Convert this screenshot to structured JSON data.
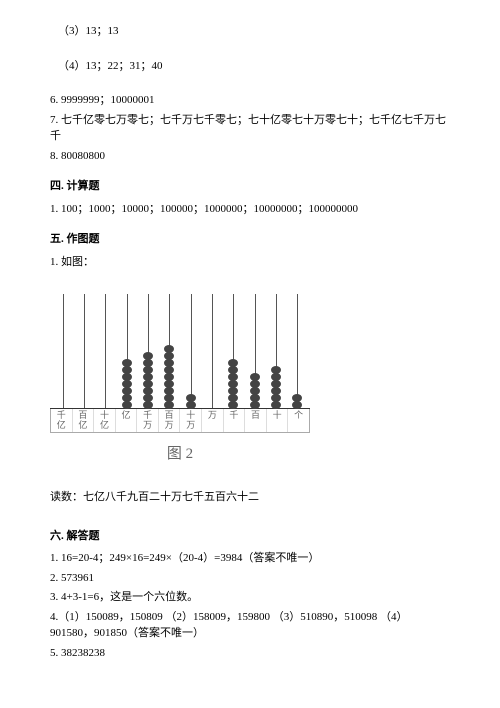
{
  "answers": {
    "item3": "（3）13；13",
    "item4": "（4）13；22；31；40",
    "item6": "6. 9999999；10000001",
    "item7": "7. 七千亿零七万零七；七千万七千零七；七十亿零七十万零七十；七千亿七千万七千",
    "item8": "8. 80080800"
  },
  "section4": {
    "title": "四. 计算题",
    "line1": "1. 100；1000；10000；100000；1000000；10000000；100000000"
  },
  "section5": {
    "title": "五. 作图题",
    "line1": "1. 如图：",
    "figure_caption": "图 2",
    "reading_line": "读数：七亿八千九百二十万七千五百六十二"
  },
  "abacus": {
    "place_labels": [
      "千亿",
      "百亿",
      "十亿",
      "亿",
      "千万",
      "百万",
      "十万",
      "万",
      "千",
      "百",
      "十",
      "个"
    ],
    "bead_counts": [
      0,
      0,
      0,
      7,
      8,
      9,
      2,
      0,
      7,
      5,
      6,
      2
    ],
    "rod_color": "#555",
    "bead_color": "#444",
    "label_color": "#666",
    "border_color": "#aaa"
  },
  "section6": {
    "title": "六. 解答题",
    "line1": "1. 16=20-4；249×16=249×（20-4）=3984（答案不唯一）",
    "line2": "2. 573961",
    "line3": "3. 4+3-1=6，这是一个六位数。",
    "line4": "4.（1）150089，150809 （2）158009，159800 （3）510890，510098 （4）901580，901850（答案不唯一）",
    "line5": "5. 38238238"
  }
}
